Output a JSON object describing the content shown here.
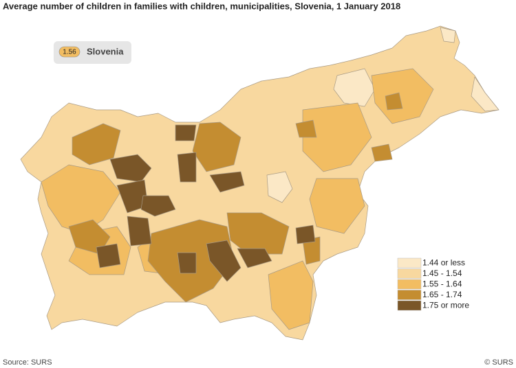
{
  "title": "Average number of children in families with children, municipalities, Slovenia, 1 January  2018",
  "national": {
    "value": 1.56,
    "label": "Slovenia"
  },
  "legend": [
    {
      "label": "1.44 or less",
      "color": "#fbe8c6"
    },
    {
      "label": "1.45 - 1.54",
      "color": "#f8d89f"
    },
    {
      "label": "1.55 - 1.64",
      "color": "#f2bd62"
    },
    {
      "label": "1.65 - 1.74",
      "color": "#c48d31"
    },
    {
      "label": "1.75 or more",
      "color": "#7a5628"
    }
  ],
  "source": "Source: SURS",
  "copyright": "© SURS"
}
